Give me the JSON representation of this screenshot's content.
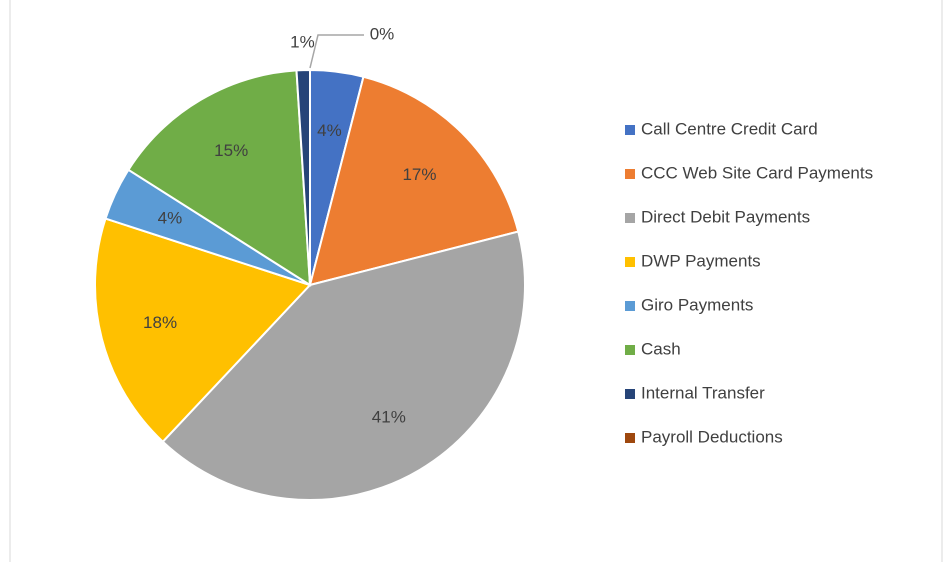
{
  "chart_data": {
    "type": "pie",
    "categories": [
      "Call Centre Credit Card",
      "CCC Web Site Card Payments",
      "Direct Debit Payments",
      "DWP Payments",
      "Giro Payments",
      "Cash",
      "Internal Transfer",
      "Payroll Deductions"
    ],
    "values": [
      4,
      17,
      41,
      18,
      4,
      15,
      1,
      0
    ],
    "value_labels": [
      "4%",
      "17%",
      "41%",
      "18%",
      "4%",
      "15%",
      "1%",
      "0%"
    ],
    "colors": [
      "#4472c4",
      "#ed7d31",
      "#a5a5a5",
      "#ffc000",
      "#5b9bd5",
      "#70ad47",
      "#264478",
      "#9e480e"
    ],
    "legend": "right"
  }
}
